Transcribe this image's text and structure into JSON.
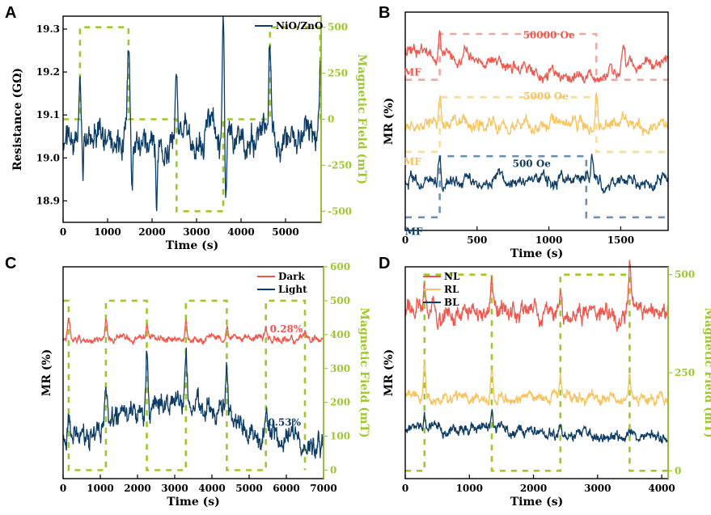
{
  "colors": {
    "navy": "#0d3d66",
    "red": "#f0564c",
    "yellow": "#f7c35c",
    "green": "#9cc829",
    "pink": "#f5a3a3",
    "lightyellow": "#f9dc9a",
    "steel": "#6f8fb0"
  },
  "chart_data": [
    {
      "panel": "A",
      "type": "line",
      "title": "",
      "xlabel": "Time (s)",
      "ylabel": "Resistance (GΩ)",
      "y2label": "Magnetic Field (mT)",
      "xlim": [
        0,
        5800
      ],
      "ylim": [
        18.85,
        19.33
      ],
      "y2lim": [
        -560,
        560
      ],
      "xticks": [
        0,
        1000,
        2000,
        3000,
        4000,
        5000
      ],
      "yticks": [
        18.9,
        19.0,
        19.1,
        19.2,
        19.3
      ],
      "ytick_labels": [
        "18.9",
        "19.0",
        "19.1",
        "19.2",
        "19.3"
      ],
      "y2ticks": [
        -500,
        -250,
        0,
        250,
        500
      ],
      "legend": [
        "NiO/ZnO"
      ],
      "legend_position": "top-right",
      "series": [
        {
          "name": "NiO/ZnO",
          "color": "navy",
          "baseline": 19.04,
          "noise": 0.03,
          "peaks": [
            [
              380,
              19.2
            ],
            [
              1470,
              19.27
            ],
            [
              2550,
              19.2
            ],
            [
              3600,
              19.3
            ],
            [
              4650,
              19.25
            ],
            [
              5780,
              19.22
            ]
          ],
          "dips": [
            [
              450,
              18.95
            ],
            [
              1550,
              18.94
            ],
            [
              2100,
              18.92
            ],
            [
              3650,
              18.91
            ]
          ]
        }
      ],
      "field": {
        "name": "Magnetic Field",
        "color": "green",
        "x": [
          0,
          380,
          380,
          1470,
          1470,
          2550,
          2550,
          3600,
          3600,
          4650,
          4650,
          5780,
          5780
        ],
        "y": [
          0,
          0,
          500,
          500,
          0,
          0,
          -500,
          -500,
          0,
          0,
          500,
          500,
          0
        ]
      }
    },
    {
      "panel": "B",
      "type": "line",
      "xlabel": "Time (s)",
      "ylabel": "MR (%)",
      "xlim": [
        0,
        1830
      ],
      "ylim": [
        0,
        10
      ],
      "xticks": [
        0,
        500,
        1000,
        1500
      ],
      "series": [
        {
          "name": "50000 Oe",
          "color": "red",
          "baseline": 8.3,
          "noise": 0.25,
          "trend": "descend-then-rise",
          "peaks": [
            [
              240,
              9.6
            ],
            [
              1520,
              9.4
            ]
          ]
        },
        {
          "name": "5000 Oe",
          "color": "yellow",
          "baseline": 4.8,
          "noise": 0.25,
          "peaks": [
            [
              240,
              6.5
            ],
            [
              1330,
              6.4
            ]
          ]
        },
        {
          "name": "500 Oe",
          "color": "navy",
          "baseline": 2.3,
          "noise": 0.25,
          "peaks": [
            [
              240,
              3.5
            ],
            [
              1300,
              3.4
            ]
          ]
        }
      ],
      "field_traces": [
        {
          "color": "pink",
          "x": [
            0,
            240,
            240,
            1330,
            1330,
            1830
          ],
          "y": [
            6.9,
            6.9,
            9.0,
            9.0,
            6.9,
            6.9
          ]
        },
        {
          "color": "lightyellow",
          "x": [
            0,
            240,
            240,
            1330,
            1330,
            1830
          ],
          "y": [
            3.6,
            3.6,
            6.1,
            6.1,
            3.6,
            3.6
          ]
        },
        {
          "color": "steel",
          "x": [
            0,
            240,
            240,
            1260,
            1260,
            1830
          ],
          "y": [
            0.6,
            0.6,
            3.4,
            3.4,
            0.6,
            0.6
          ]
        }
      ],
      "annotations": [
        {
          "text": "50000 Oe",
          "color": "red",
          "x": 1000,
          "y": 8.8
        },
        {
          "text": "5000 Oe",
          "color": "yellow",
          "x": 980,
          "y": 6.0
        },
        {
          "text": "500 Oe",
          "color": "navy",
          "x": 880,
          "y": 2.9
        },
        {
          "text": "MF",
          "color": "red",
          "x": 50,
          "y": 7.1
        },
        {
          "text": "MF",
          "color": "yellow",
          "x": 50,
          "y": 3.0
        },
        {
          "text": "MF",
          "color": "navy",
          "x": 60,
          "y": -0.2
        }
      ]
    },
    {
      "panel": "C",
      "type": "line",
      "xlabel": "Time (s)",
      "ylabel": "MR (%)",
      "y2label": "Magnetic Field (mT)",
      "xlim": [
        0,
        7000
      ],
      "ylim": [
        0,
        10
      ],
      "y2lim": [
        -25,
        600
      ],
      "xticks": [
        0,
        1000,
        2000,
        3000,
        4000,
        5000,
        6000,
        7000
      ],
      "y2ticks": [
        0,
        100,
        200,
        300,
        400,
        500,
        600
      ],
      "legend": [
        "Dark",
        "Light"
      ],
      "legend_position": "top-right",
      "series": [
        {
          "name": "Dark",
          "color": "red",
          "baseline": 6.6,
          "noise": 0.12,
          "peaks": [
            [
              150,
              7.6
            ],
            [
              1150,
              7.4
            ],
            [
              2250,
              7.2
            ],
            [
              3300,
              7.4
            ],
            [
              4400,
              7.1
            ],
            [
              5450,
              7.2
            ],
            [
              6500,
              7.1
            ]
          ]
        },
        {
          "name": "Light",
          "color": "navy",
          "baseline": 2.1,
          "noise": 0.45,
          "trend": "hump",
          "peaks": [
            [
              150,
              3.3
            ],
            [
              1150,
              3.2
            ],
            [
              2250,
              4.8
            ],
            [
              3300,
              4.6
            ],
            [
              4400,
              4.1
            ],
            [
              5450,
              2.8
            ],
            [
              6500,
              2.6
            ]
          ]
        }
      ],
      "field": {
        "color": "green",
        "x": [
          0,
          150,
          150,
          1150,
          1150,
          2250,
          2250,
          3300,
          3300,
          4400,
          4400,
          5450,
          5450,
          6500,
          6500
        ],
        "y": [
          500,
          500,
          0,
          0,
          500,
          500,
          0,
          0,
          500,
          500,
          0,
          0,
          500,
          500,
          0
        ]
      },
      "annotations": [
        {
          "text": "0.28%",
          "color": "red",
          "x": 6000,
          "y": 6.9
        },
        {
          "text": "0.53%",
          "color": "navy",
          "x": 5950,
          "y": 2.5
        }
      ]
    },
    {
      "panel": "D",
      "type": "line",
      "xlabel": "Time (s)",
      "ylabel": "MR (%)",
      "y2label": "Magnetic Field (mT)",
      "xlim": [
        0,
        4100
      ],
      "ylim": [
        0,
        10
      ],
      "y2lim": [
        -20,
        520
      ],
      "xticks": [
        0,
        1000,
        2000,
        3000,
        4000
      ],
      "y2ticks": [
        0,
        250,
        500
      ],
      "legend": [
        "NL",
        "RL",
        "BL"
      ],
      "legend_position": "top-left",
      "series": [
        {
          "name": "NL",
          "color": "red",
          "baseline": 7.9,
          "noise": 0.35,
          "peaks": [
            [
              300,
              9.2
            ],
            [
              1350,
              9.1
            ],
            [
              2420,
              9.0
            ],
            [
              3500,
              9.8
            ]
          ]
        },
        {
          "name": "RL",
          "color": "yellow",
          "baseline": 3.8,
          "noise": 0.2,
          "peaks": [
            [
              300,
              5.5
            ],
            [
              1350,
              5.2
            ],
            [
              2420,
              5.0
            ],
            [
              3500,
              4.7
            ]
          ]
        },
        {
          "name": "BL",
          "color": "navy",
          "baseline": 2.5,
          "noise": 0.2,
          "trend": "descend",
          "peaks": [
            [
              300,
              3.4
            ],
            [
              1350,
              3.3
            ],
            [
              2420,
              3.0
            ],
            [
              3500,
              2.8
            ]
          ]
        }
      ],
      "field": {
        "color": "green",
        "x": [
          0,
          300,
          300,
          1350,
          1350,
          2420,
          2420,
          3500,
          3500,
          4100
        ],
        "y": [
          0,
          0,
          500,
          500,
          0,
          0,
          500,
          500,
          0,
          0
        ]
      }
    }
  ],
  "panels_text": {
    "A": {
      "label": "A",
      "legend": "NiO/ZnO"
    },
    "B": {
      "label": "B"
    },
    "C": {
      "label": "C"
    },
    "D": {
      "label": "D"
    }
  }
}
